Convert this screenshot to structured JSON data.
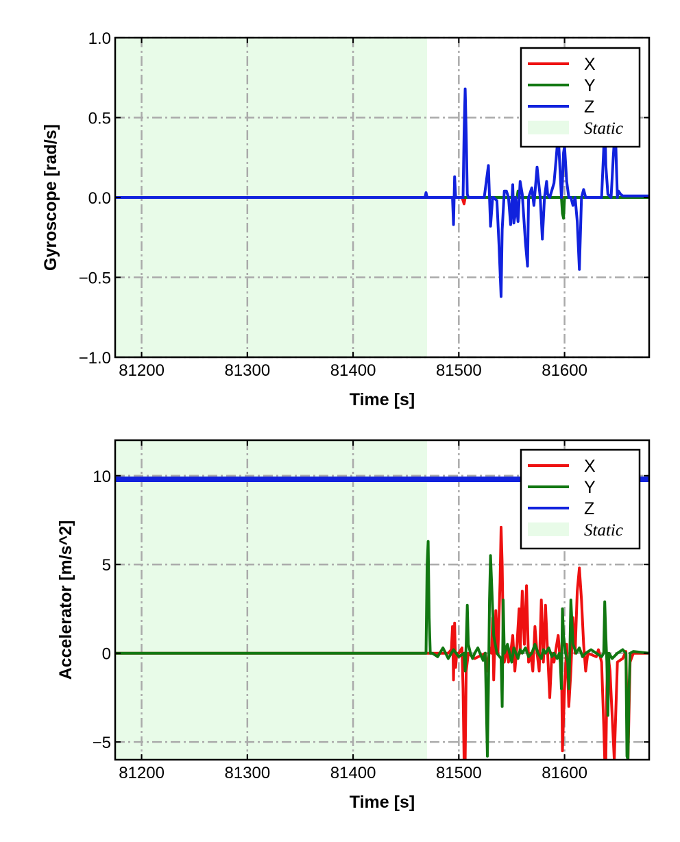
{
  "chart_data": [
    {
      "type": "line",
      "ylabel": "Gyroscope [rad/s]",
      "xlabel": "Time [s]",
      "xlim": [
        81175,
        81680
      ],
      "ylim": [
        -1.0,
        1.0
      ],
      "x_ticks": [
        81200,
        81300,
        81400,
        81500,
        81600
      ],
      "y_ticks": [
        -1.0,
        -0.5,
        0.0,
        0.5,
        1.0
      ],
      "y_tick_labels": [
        "−1.0",
        "−0.5",
        "0.0",
        "0.5",
        "1.0"
      ],
      "grid": true,
      "legend_position": "top-right",
      "static_region": [
        81175,
        81470
      ],
      "static_label": "Static",
      "static_color": "#e8fbe8",
      "series": [
        {
          "name": "X",
          "color": "#ee1111",
          "x": [
            81175,
            81470,
            81503,
            81504,
            81505,
            81506,
            81510,
            81600,
            81680
          ],
          "y": [
            0.0,
            0.0,
            0.0,
            -0.02,
            -0.04,
            0.0,
            0.0,
            0.0,
            0.0
          ]
        },
        {
          "name": "Y",
          "color": "#117711",
          "x": [
            81175,
            81470,
            81555,
            81556,
            81557,
            81597,
            81598,
            81599,
            81600,
            81680
          ],
          "y": [
            0.0,
            0.0,
            0.0,
            0.04,
            0.0,
            0.0,
            -0.1,
            -0.13,
            0.0,
            0.0
          ]
        },
        {
          "name": "Z",
          "color": "#1122dd",
          "x": [
            81175,
            81468,
            81469,
            81470,
            81494,
            81495,
            81496,
            81497,
            81504,
            81505,
            81506,
            81507,
            81508,
            81509,
            81510,
            81524,
            81528,
            81529,
            81530,
            81532,
            81533,
            81536,
            81538,
            81540,
            81541,
            81543,
            81545,
            81547,
            81549,
            81551,
            81552,
            81553,
            81554,
            81556,
            81558,
            81560,
            81563,
            81565,
            81566,
            81569,
            81571,
            81574,
            81577,
            81579,
            81581,
            81583,
            81584,
            81586,
            81590,
            81592,
            81594,
            81597,
            81598,
            81599,
            81600,
            81602,
            81604,
            81606,
            81608,
            81610,
            81612,
            81614,
            81616,
            81618,
            81620,
            81635,
            81637,
            81638,
            81639,
            81641,
            81644,
            81646,
            81648,
            81649,
            81650,
            81651,
            81653,
            81655,
            81680
          ],
          "y": [
            0.0,
            0.0,
            0.03,
            0.0,
            0.0,
            -0.17,
            0.13,
            0.0,
            0.0,
            0.4,
            0.68,
            0.4,
            0.02,
            0.0,
            0.0,
            0.0,
            0.2,
            0.0,
            -0.18,
            0.0,
            0.0,
            -0.02,
            -0.3,
            -0.62,
            -0.2,
            0.04,
            0.04,
            0.0,
            -0.17,
            0.08,
            -0.16,
            -0.12,
            0.0,
            -0.15,
            0.1,
            0.02,
            -0.28,
            -0.43,
            0.0,
            0.06,
            -0.05,
            0.19,
            0.0,
            -0.26,
            0.0,
            0.1,
            0.02,
            0.0,
            0.09,
            0.24,
            0.4,
            0.0,
            0.1,
            0.28,
            0.32,
            0.1,
            0.0,
            0.0,
            -0.05,
            0.0,
            -0.15,
            -0.45,
            0.0,
            0.05,
            0.0,
            0.0,
            0.3,
            0.5,
            0.2,
            0.02,
            0.0,
            0.25,
            0.45,
            0.2,
            0.0,
            0.04,
            0.02,
            0.01,
            0.01
          ]
        }
      ]
    },
    {
      "type": "line",
      "ylabel": "Accelerator [m/s^2]",
      "xlabel": "Time [s]",
      "xlim": [
        81175,
        81680
      ],
      "ylim": [
        -6.0,
        12.0
      ],
      "x_ticks": [
        81200,
        81300,
        81400,
        81500,
        81600
      ],
      "y_ticks": [
        -5,
        0,
        5,
        10
      ],
      "y_tick_labels": [
        "−5",
        "0",
        "5",
        "10"
      ],
      "grid": true,
      "legend_position": "top-right",
      "static_region": [
        81175,
        81470
      ],
      "static_label": "Static",
      "static_color": "#e8fbe8",
      "series": [
        {
          "name": "X",
          "color": "#ee1111",
          "x": [
            81175,
            81470,
            81490,
            81493,
            81494,
            81495,
            81496,
            81497,
            81498,
            81500,
            81503,
            81504,
            81505,
            81506,
            81507,
            81509,
            81515,
            81525,
            81527,
            81529,
            81531,
            81532,
            81533,
            81535,
            81537,
            81539,
            81540,
            81541,
            81542,
            81543,
            81545,
            81547,
            81549,
            81551,
            81553,
            81555,
            81557,
            81558,
            81560,
            81562,
            81564,
            81566,
            81568,
            81570,
            81572,
            81574,
            81576,
            81578,
            81580,
            81582,
            81584,
            81586,
            81588,
            81590,
            81592,
            81594,
            81596,
            81597,
            81598,
            81600,
            81602,
            81604,
            81606,
            81608,
            81610,
            81612,
            81614,
            81616,
            81618,
            81620,
            81622,
            81630,
            81632,
            81635,
            81637,
            81638,
            81639,
            81640,
            81641,
            81643,
            81645,
            81647,
            81650,
            81655,
            81658,
            81660,
            81662,
            81665,
            81680
          ],
          "y": [
            0.0,
            0.0,
            0.0,
            0.2,
            1.5,
            -1.5,
            1.7,
            -0.8,
            0.0,
            0.0,
            0.3,
            -2.0,
            -6.0,
            -6.0,
            -1.0,
            0.0,
            -0.3,
            0.0,
            -1.0,
            0.3,
            0.0,
            2.0,
            -1.5,
            2.4,
            0.0,
            4.0,
            7.1,
            5.0,
            1.0,
            -0.5,
            0.3,
            -0.5,
            0.0,
            1.0,
            -1.0,
            0.5,
            2.5,
            0.0,
            3.5,
            0.5,
            3.8,
            -0.5,
            0.0,
            -1.0,
            1.5,
            0.0,
            -1.0,
            3.0,
            -0.5,
            2.7,
            0.0,
            -2.5,
            0.0,
            -0.5,
            0.3,
            1.0,
            -0.5,
            0.0,
            -5.5,
            -2.0,
            0.5,
            -3.0,
            -1.0,
            2.0,
            0.0,
            3.5,
            4.8,
            3.0,
            0.5,
            -1.0,
            0.0,
            -0.2,
            0.2,
            -0.5,
            -4.0,
            -6.0,
            -6.0,
            -2.0,
            0.0,
            -1.0,
            -3.5,
            -6.0,
            -0.5,
            -0.3,
            0.1,
            -6.0,
            -0.5,
            0.0,
            0.0
          ]
        },
        {
          "name": "Y",
          "color": "#117711",
          "x": [
            81175,
            81469,
            81470,
            81471,
            81472,
            81473,
            81475,
            81480,
            81485,
            81490,
            81495,
            81500,
            81505,
            81506,
            81507,
            81508,
            81509,
            81511,
            81513,
            81515,
            81518,
            81520,
            81523,
            81525,
            81527,
            81528,
            81529,
            81530,
            81533,
            81536,
            81540,
            81541,
            81542,
            81543,
            81546,
            81548,
            81550,
            81552,
            81554,
            81556,
            81558,
            81560,
            81563,
            81566,
            81569,
            81572,
            81575,
            81578,
            81580,
            81582,
            81585,
            81588,
            81590,
            81593,
            81595,
            81596,
            81597,
            81598,
            81599,
            81601,
            81603,
            81604,
            81605,
            81606,
            81608,
            81611,
            81614,
            81617,
            81620,
            81625,
            81630,
            81635,
            81637,
            81638,
            81639,
            81640,
            81641,
            81642,
            81645,
            81650,
            81655,
            81658,
            81659,
            81660,
            81661,
            81662,
            81665,
            81680
          ],
          "y": [
            0.0,
            0.0,
            5.0,
            6.3,
            2.0,
            0.0,
            0.0,
            -0.2,
            0.3,
            -0.3,
            0.2,
            -0.2,
            0.0,
            -1.0,
            0.5,
            2.7,
            0.5,
            0.0,
            -0.3,
            0.0,
            0.3,
            0.0,
            -0.4,
            0.0,
            -5.8,
            -2.0,
            3.0,
            5.5,
            1.0,
            0.0,
            -0.3,
            -3.0,
            3.0,
            0.0,
            0.5,
            0.0,
            -0.5,
            0.3,
            0.0,
            -0.3,
            0.2,
            0.0,
            0.3,
            -0.2,
            0.0,
            0.5,
            0.0,
            -0.3,
            0.2,
            0.0,
            0.3,
            -0.2,
            0.0,
            -0.3,
            0.0,
            -0.5,
            -2.0,
            2.5,
            1.0,
            0.0,
            -0.5,
            -2.0,
            0.0,
            3.0,
            0.5,
            0.0,
            0.3,
            -0.2,
            0.0,
            0.2,
            0.0,
            -0.2,
            0.0,
            2.9,
            1.0,
            -0.5,
            -3.5,
            0.0,
            -0.3,
            0.0,
            0.2,
            0.0,
            -5.8,
            -6.0,
            -2.0,
            0.0,
            0.1,
            0.0
          ]
        },
        {
          "name": "Z",
          "color": "#1122dd",
          "x": [
            81175,
            81680
          ],
          "y": [
            9.8,
            9.8
          ]
        }
      ]
    }
  ]
}
